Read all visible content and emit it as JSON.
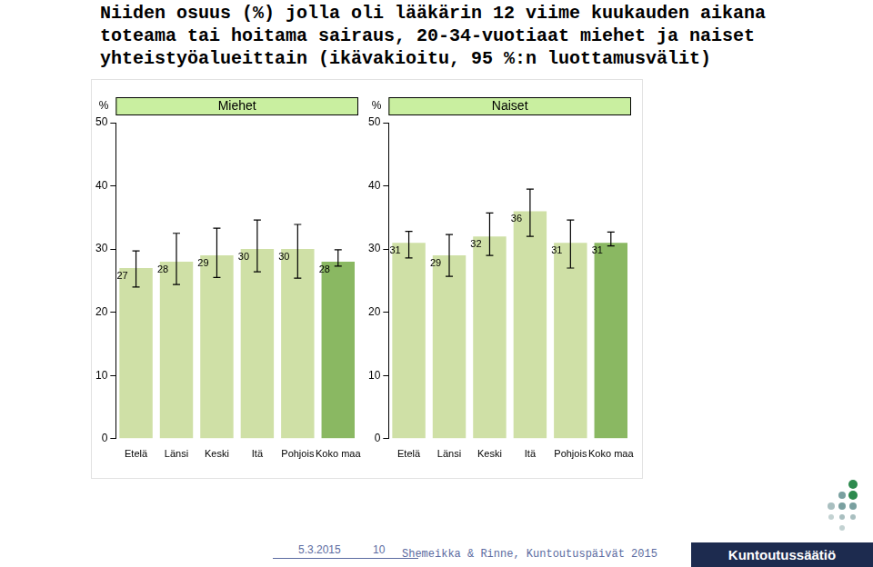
{
  "title": [
    "Niiden osuus (%) jolla oli lääkärin 12 viime kuukauden aikana",
    "toteama tai hoitama sairaus, 20-34-vuotiaat miehet ja naiset",
    "yhteistyöalueittain (ikävakioitu, 95 %:n luottamusvälit)"
  ],
  "chart_data": [
    {
      "type": "bar",
      "title": "Miehet",
      "y_label": "%",
      "categories": [
        "Etelä",
        "Länsi",
        "Keski",
        "Itä",
        "Pohjois",
        "Koko maa"
      ],
      "values": [
        27,
        28,
        29,
        30,
        30,
        28
      ],
      "ci_low": [
        24.0,
        24.4,
        25.5,
        26.4,
        25.4,
        27.3
      ],
      "ci_high": [
        29.7,
        32.5,
        33.3,
        34.6,
        33.9,
        29.9
      ],
      "colors": [
        "#cfe0a6",
        "#cfe0a6",
        "#cfe0a6",
        "#cfe0a6",
        "#cfe0a6",
        "#8ab862"
      ],
      "ylim": [
        0,
        50
      ],
      "yticks": [
        0,
        10,
        20,
        30,
        40,
        50
      ],
      "grid": false,
      "data_labels": true
    },
    {
      "type": "bar",
      "title": "Naiset",
      "y_label": "%",
      "categories": [
        "Etelä",
        "Länsi",
        "Keski",
        "Itä",
        "Pohjois",
        "Koko maa"
      ],
      "values": [
        31,
        29,
        32,
        36,
        31,
        31
      ],
      "ci_low": [
        28.6,
        25.7,
        29.0,
        32.0,
        27.0,
        30.5
      ],
      "ci_high": [
        32.8,
        32.3,
        35.7,
        39.5,
        34.6,
        32.7
      ],
      "colors": [
        "#cfe0a6",
        "#cfe0a6",
        "#cfe0a6",
        "#cfe0a6",
        "#cfe0a6",
        "#8ab862"
      ],
      "ylim": [
        0,
        50
      ],
      "yticks": [
        0,
        10,
        20,
        30,
        40,
        50
      ],
      "grid": false,
      "data_labels": true
    }
  ],
  "footer": {
    "date": "5.3.2015",
    "page": 10,
    "source": "Shemeikka & Rinne, Kuntoutuspäivät 2015",
    "logo": "Kuntoutussäätiö"
  }
}
